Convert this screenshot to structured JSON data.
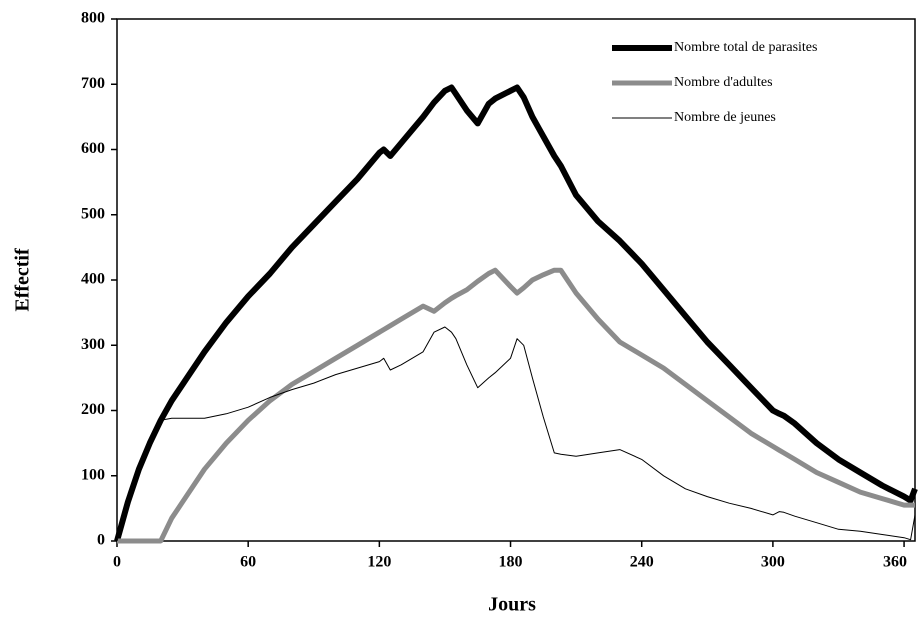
{
  "chart_data": {
    "type": "line",
    "xlabel": "Jours",
    "ylabel": "Effectif",
    "x": [
      0,
      5,
      10,
      15,
      20,
      25,
      30,
      40,
      50,
      60,
      70,
      80,
      90,
      100,
      110,
      120,
      122,
      125,
      130,
      140,
      145,
      150,
      153,
      155,
      160,
      165,
      170,
      173,
      180,
      183,
      186,
      190,
      195,
      200,
      203,
      210,
      220,
      230,
      240,
      250,
      260,
      270,
      280,
      290,
      300,
      303,
      305,
      310,
      320,
      330,
      340,
      350,
      360,
      363,
      365
    ],
    "series": [
      {
        "name": "Nombre total de parasites",
        "color": "#000000",
        "width": 6,
        "values": [
          0,
          60,
          110,
          150,
          185,
          215,
          240,
          290,
          335,
          375,
          410,
          450,
          485,
          520,
          555,
          595,
          600,
          590,
          610,
          650,
          672,
          690,
          695,
          685,
          660,
          640,
          670,
          678,
          690,
          695,
          680,
          650,
          620,
          590,
          575,
          530,
          490,
          460,
          425,
          385,
          345,
          305,
          270,
          235,
          200,
          195,
          192,
          180,
          150,
          125,
          105,
          85,
          68,
          62,
          80
        ]
      },
      {
        "name": "Nombre d'adultes",
        "color": "#8c8c8c",
        "width": 5,
        "values": [
          0,
          0,
          0,
          0,
          0,
          35,
          60,
          110,
          150,
          185,
          215,
          240,
          260,
          280,
          300,
          320,
          324,
          330,
          340,
          360,
          352,
          365,
          372,
          376,
          385,
          398,
          410,
          415,
          390,
          380,
          388,
          400,
          408,
          415,
          415,
          380,
          340,
          305,
          285,
          265,
          240,
          215,
          190,
          165,
          145,
          139,
          135,
          125,
          105,
          90,
          75,
          65,
          55,
          55,
          55
        ]
      },
      {
        "name": "Nombre de jeunes",
        "color": "#000000",
        "width": 1,
        "values": [
          0,
          60,
          110,
          150,
          185,
          188,
          188,
          188,
          195,
          205,
          220,
          232,
          242,
          255,
          265,
          275,
          280,
          262,
          270,
          290,
          320,
          328,
          320,
          310,
          270,
          235,
          250,
          258,
          280,
          310,
          300,
          250,
          190,
          135,
          133,
          130,
          135,
          140,
          125,
          100,
          80,
          68,
          58,
          50,
          40,
          45,
          44,
          38,
          28,
          18,
          15,
          10,
          5,
          2,
          40
        ]
      }
    ],
    "xlim": [
      0,
      365
    ],
    "ylim": [
      0,
      800
    ],
    "xticks": [
      0,
      60,
      120,
      180,
      240,
      300,
      360
    ],
    "yticks": [
      0,
      100,
      200,
      300,
      400,
      500,
      600,
      700,
      800
    ],
    "legend": "upper right"
  }
}
